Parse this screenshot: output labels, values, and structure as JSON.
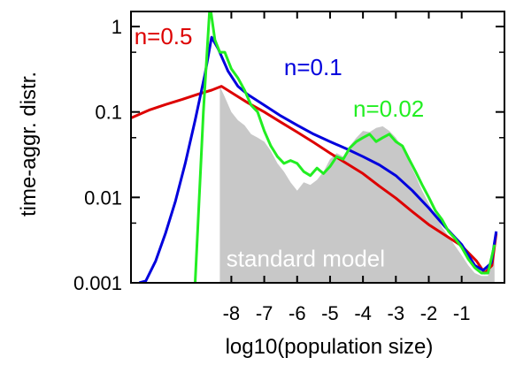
{
  "chart_data": {
    "type": "line",
    "xlabel": "log10(population size)",
    "ylabel": "time-aggr. distr.",
    "y_scale": "log",
    "ylim": [
      0.001,
      1.5
    ],
    "xlim": [
      -11.05,
      0.3
    ],
    "grid": false,
    "x_ticks": [
      -8,
      -7,
      -6,
      -5,
      -4,
      -3,
      -2,
      -1
    ],
    "x_tick_labels": [
      "-8",
      "-7",
      "-6",
      "-5",
      "-4",
      "-3",
      "-2",
      "-1"
    ],
    "y_ticks": [
      1,
      0.1,
      0.01,
      0.001
    ],
    "y_tick_labels": [
      "1",
      "0.1",
      "0.01",
      "0.001"
    ],
    "series": [
      {
        "name": "n=0.5",
        "color": "#dd0000",
        "x": [
          -11.05,
          -10.5,
          -10.0,
          -9.5,
          -9.0,
          -8.6,
          -8.3,
          -7.9,
          -7.5,
          -7.0,
          -6.5,
          -6.0,
          -5.5,
          -5.0,
          -4.5,
          -4.0,
          -3.5,
          -3.0,
          -2.5,
          -2.0,
          -1.5,
          -1.0,
          -0.55,
          -0.3,
          -0.08,
          0.05
        ],
        "y": [
          0.085,
          0.105,
          0.122,
          0.14,
          0.162,
          0.18,
          0.2,
          0.16,
          0.128,
          0.1,
          0.076,
          0.058,
          0.044,
          0.033,
          0.025,
          0.019,
          0.0135,
          0.0098,
          0.0068,
          0.0048,
          0.0036,
          0.0027,
          0.0018,
          0.0013,
          0.0016,
          0.0038
        ]
      },
      {
        "name": "n=0.1",
        "color": "#0000dd",
        "x": [
          -10.8,
          -10.6,
          -10.3,
          -10.0,
          -9.7,
          -9.4,
          -9.1,
          -8.8,
          -8.6,
          -8.4,
          -8.1,
          -7.8,
          -7.5,
          -7.0,
          -6.5,
          -6.0,
          -5.5,
          -5.0,
          -4.5,
          -4.0,
          -3.5,
          -3.0,
          -2.5,
          -2.0,
          -1.5,
          -1.0,
          -0.6,
          -0.35,
          -0.1,
          0.05
        ],
        "y": [
          0.001,
          0.00105,
          0.0018,
          0.0038,
          0.009,
          0.025,
          0.08,
          0.28,
          0.75,
          0.55,
          0.3,
          0.2,
          0.16,
          0.12,
          0.09,
          0.07,
          0.055,
          0.045,
          0.037,
          0.03,
          0.024,
          0.018,
          0.012,
          0.0075,
          0.0045,
          0.0028,
          0.0016,
          0.0014,
          0.0017,
          0.004
        ]
      },
      {
        "name": "n=0.02",
        "color": "#22ee22",
        "x": [
          -9.1,
          -8.85,
          -8.65,
          -8.5,
          -8.35,
          -8.2,
          -8.0,
          -7.8,
          -7.6,
          -7.4,
          -7.2,
          -7.0,
          -6.8,
          -6.6,
          -6.4,
          -6.2,
          -6.0,
          -5.8,
          -5.6,
          -5.4,
          -5.2,
          -5.0,
          -4.8,
          -4.6,
          -4.4,
          -4.2,
          -4.0,
          -3.8,
          -3.6,
          -3.4,
          -3.2,
          -3.0,
          -2.8,
          -2.6,
          -2.4,
          -2.2,
          -2.0,
          -1.8,
          -1.6,
          -1.4,
          -1.2,
          -1.0,
          -0.8,
          -0.6,
          -0.4,
          -0.2,
          0.0
        ],
        "y": [
          0.001,
          0.1,
          1.8,
          0.7,
          0.5,
          0.5,
          0.32,
          0.25,
          0.18,
          0.12,
          0.1,
          0.06,
          0.04,
          0.03,
          0.025,
          0.027,
          0.025,
          0.02,
          0.018,
          0.022,
          0.019,
          0.023,
          0.03,
          0.028,
          0.038,
          0.045,
          0.05,
          0.055,
          0.045,
          0.05,
          0.055,
          0.045,
          0.04,
          0.028,
          0.02,
          0.014,
          0.01,
          0.007,
          0.0055,
          0.004,
          0.0033,
          0.0026,
          0.0019,
          0.0015,
          0.0013,
          0.0013,
          0.0028
        ]
      },
      {
        "name": "standard model",
        "type": "area",
        "color": "#c8c8c8",
        "x": [
          -8.35,
          -8.2,
          -8.0,
          -7.8,
          -7.6,
          -7.4,
          -7.2,
          -7.0,
          -6.8,
          -6.6,
          -6.4,
          -6.2,
          -6.0,
          -5.8,
          -5.6,
          -5.4,
          -5.2,
          -5.0,
          -4.8,
          -4.6,
          -4.4,
          -4.2,
          -4.0,
          -3.8,
          -3.6,
          -3.4,
          -3.2,
          -3.0,
          -2.8,
          -2.6,
          -2.4,
          -2.2,
          -2.0,
          -1.8,
          -1.6,
          -1.4,
          -1.2,
          -1.0,
          -0.8,
          -0.6,
          -0.4,
          -0.2,
          0.0
        ],
        "y": [
          0.2,
          0.15,
          0.1,
          0.08,
          0.07,
          0.055,
          0.05,
          0.045,
          0.035,
          0.025,
          0.02,
          0.015,
          0.012,
          0.015,
          0.014,
          0.016,
          0.02,
          0.028,
          0.033,
          0.03,
          0.04,
          0.05,
          0.06,
          0.058,
          0.065,
          0.068,
          0.06,
          0.05,
          0.038,
          0.026,
          0.018,
          0.012,
          0.0085,
          0.0062,
          0.0045,
          0.0035,
          0.0027,
          0.0021,
          0.0016,
          0.0013,
          0.0012,
          0.0012,
          0.0025
        ]
      }
    ],
    "annotations": [
      {
        "text": "n=0.5",
        "color": "#dd0000",
        "x": -10.95,
        "y": 0.62
      },
      {
        "text": "n=0.1",
        "color": "#0000dd",
        "x": -6.4,
        "y": 0.27
      },
      {
        "text": "n=0.02",
        "color": "#22ee22",
        "x": -4.3,
        "y": 0.088
      },
      {
        "text": "standard model",
        "color": "#ffffff",
        "x": -8.15,
        "y": 0.00155
      }
    ]
  }
}
